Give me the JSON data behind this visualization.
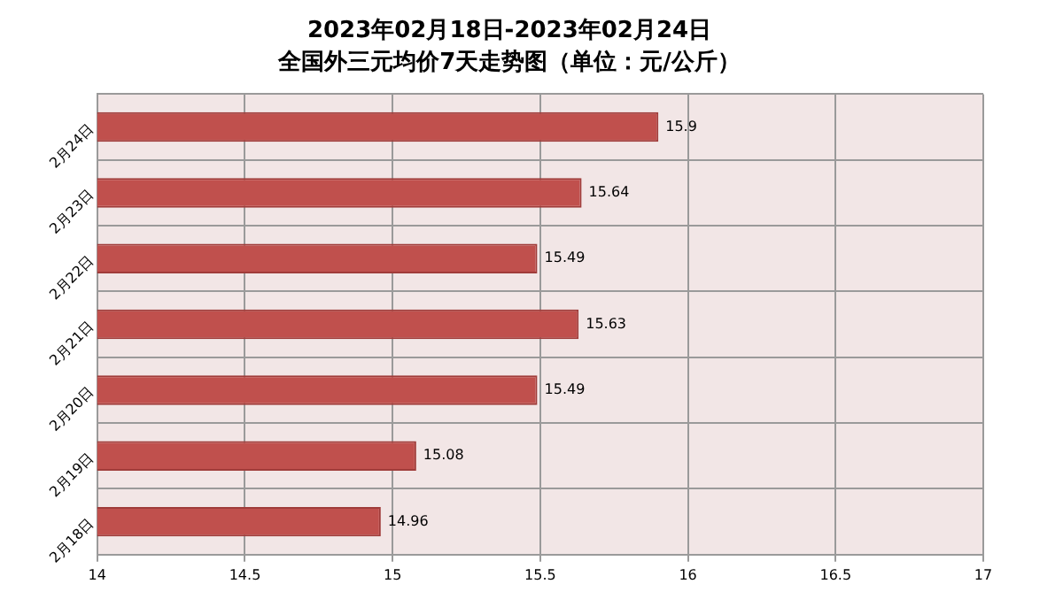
{
  "chart_data": {
    "type": "bar",
    "orientation": "horizontal",
    "title": "2023年02月18日-2023年02月24日",
    "subtitle": "全国外三元均价7天走势图（单位：元/公斤）",
    "categories": [
      "2月24日",
      "2月23日",
      "2月22日",
      "2月21日",
      "2月20日",
      "2月19日",
      "2月18日"
    ],
    "values": [
      15.9,
      15.64,
      15.49,
      15.63,
      15.49,
      15.08,
      14.96
    ],
    "color": "#c0504d",
    "xlim": [
      14,
      17
    ],
    "xticks": [
      14,
      14.5,
      15,
      15.5,
      16,
      16.5,
      17
    ],
    "grid": true,
    "data_labels": true,
    "legend": false
  }
}
